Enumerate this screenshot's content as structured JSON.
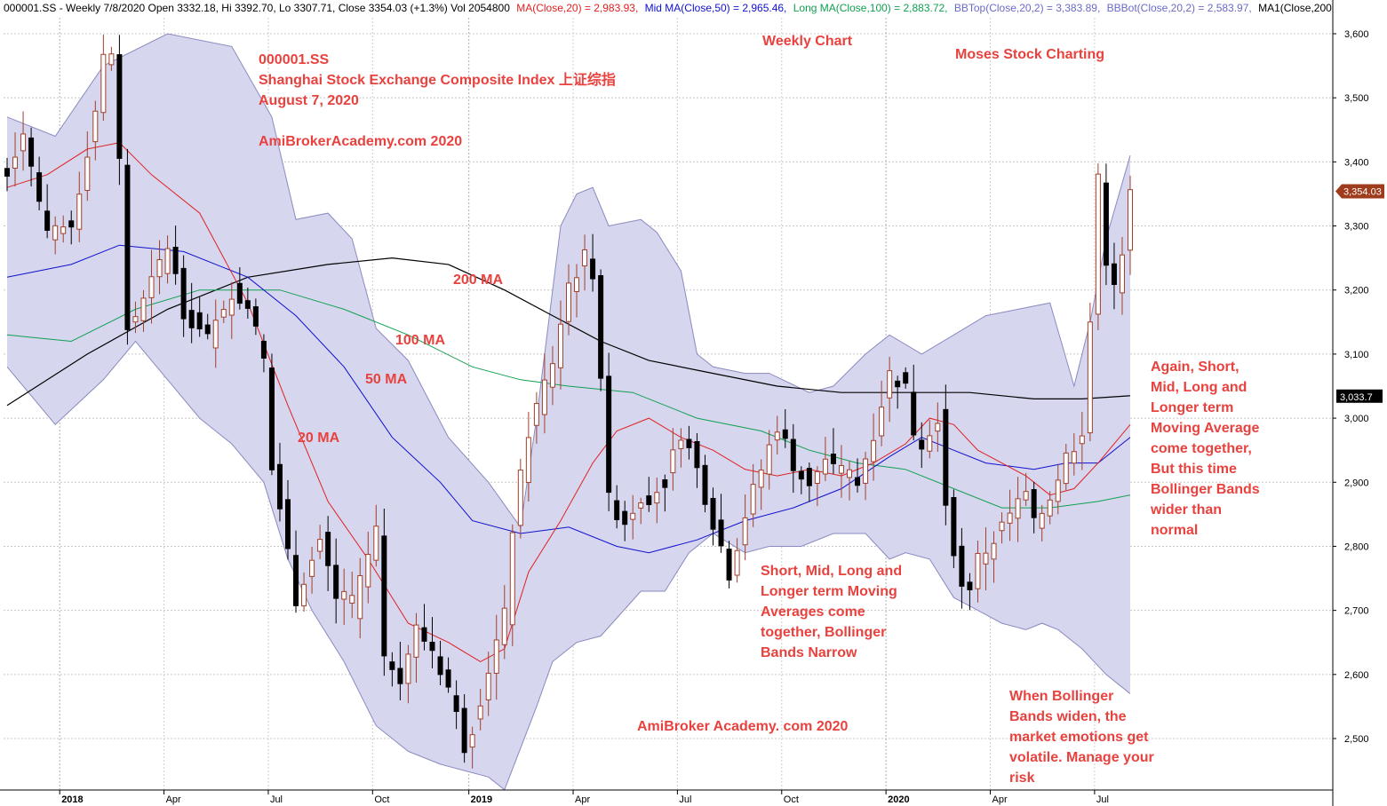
{
  "header": {
    "symbol_line": "000001.SS - Weekly 7/8/2020 Open 3332.18, Hi 3392.70, Lo 3307.71, Close 3354.03 (+1.3%) Vol 2054800",
    "ma20": "MA(Close,20) = 2,983.93,",
    "mid_ma": "Mid MA(Close,50) = 2,965.46,",
    "long_ma": "Long MA(Close,100) = 2,883.72,",
    "bbtop": "BBTop(Close,20,2) = 3,383.89,",
    "bbbot": "BBBot(Close,20,2) = 2,583.97,",
    "ma1": "MA1(Close,200"
  },
  "colors": {
    "up_body": "#ffffff",
    "up_outline": "#a0402a",
    "down_body": "#000000",
    "band_fill": "#d6d6ee",
    "band_edge": "#8a8ac0",
    "ma20": "#e02020",
    "ma50": "#1010d0",
    "ma100": "#10a050",
    "ma200": "#000000",
    "annotation": "#e8423f"
  },
  "annotations": {
    "title_lines": [
      "000001.SS",
      "Shanghai Stock Exchange Composite Index 上证综指",
      "August 7, 2020"
    ],
    "site_top": "AmiBrokerAcademy.com  2020",
    "weekly": "Weekly Chart",
    "moses": "Moses Stock Charting",
    "ma200_label": "200   MA",
    "ma100_label": "100  MA",
    "ma50_label": "50 MA",
    "ma20_label": "20 MA",
    "narrow_note": [
      "Short, Mid, Long and",
      "Longer term Moving",
      "Averages come",
      "together, Bollinger",
      "Bands Narrow"
    ],
    "site_bottom": "AmiBroker Academy. com  2020",
    "wide_note": [
      "Again, Short,",
      "Mid, Long and",
      "Longer term",
      "Moving Average",
      "come together,",
      "But this time",
      "Bollinger Bands",
      "wider than",
      "normal"
    ],
    "risk_note": [
      "When Bollinger",
      "Bands widen, the",
      "market emotions get",
      "volatile. Manage your",
      "risk"
    ]
  },
  "chart_data": {
    "type": "candlestick",
    "title": "",
    "y_ticks": [
      "3,600",
      "3,500",
      "3,400",
      "3,300",
      "3,200",
      "3,100",
      "3,000",
      "2,900",
      "2,800",
      "2,700",
      "2,600",
      "2,500"
    ],
    "y_tick_values": [
      3600,
      3500,
      3400,
      3300,
      3200,
      3100,
      3000,
      2900,
      2800,
      2700,
      2600,
      2500
    ],
    "ylim": [
      2420,
      3680
    ],
    "x_labels": [
      {
        "label": "2018",
        "week": 7,
        "bold": true
      },
      {
        "label": "Apr",
        "week": 20,
        "bold": false
      },
      {
        "label": "Jul",
        "week": 33,
        "bold": false
      },
      {
        "label": "Oct",
        "week": 46,
        "bold": false
      },
      {
        "label": "2019",
        "week": 58,
        "bold": true
      },
      {
        "label": "Apr",
        "week": 71,
        "bold": false
      },
      {
        "label": "Jul",
        "week": 84,
        "bold": false
      },
      {
        "label": "Oct",
        "week": 97,
        "bold": false
      },
      {
        "label": "2020",
        "week": 110,
        "bold": true
      },
      {
        "label": "Apr",
        "week": 123,
        "bold": false
      },
      {
        "label": "Jul",
        "week": 136,
        "bold": false
      }
    ],
    "last_price_label": "3,354.03",
    "last_price_value": 3354.03,
    "ma200_label_value": "3,033.7",
    "ma200_last_value": 3033.7,
    "week_count": 146,
    "price_points": [
      [
        0,
        3390
      ],
      [
        2,
        3450
      ],
      [
        5,
        3280
      ],
      [
        8,
        3300
      ],
      [
        11,
        3480
      ],
      [
        12,
        3560
      ],
      [
        13,
        3570
      ],
      [
        14,
        3400
      ],
      [
        15,
        3140
      ],
      [
        17,
        3180
      ],
      [
        20,
        3270
      ],
      [
        22,
        3170
      ],
      [
        25,
        3120
      ],
      [
        28,
        3200
      ],
      [
        30,
        3180
      ],
      [
        32,
        3090
      ],
      [
        33,
        2920
      ],
      [
        34,
        2860
      ],
      [
        36,
        2720
      ],
      [
        39,
        2810
      ],
      [
        41,
        2720
      ],
      [
        43,
        2700
      ],
      [
        46,
        2820
      ],
      [
        47,
        2630
      ],
      [
        49,
        2600
      ],
      [
        51,
        2670
      ],
      [
        53,
        2640
      ],
      [
        55,
        2580
      ],
      [
        57,
        2490
      ],
      [
        58,
        2520
      ],
      [
        60,
        2610
      ],
      [
        62,
        2690
      ],
      [
        63,
        2830
      ],
      [
        65,
        2980
      ],
      [
        68,
        3090
      ],
      [
        70,
        3210
      ],
      [
        72,
        3250
      ],
      [
        73,
        3230
      ],
      [
        74,
        3070
      ],
      [
        75,
        2870
      ],
      [
        77,
        2840
      ],
      [
        79,
        2880
      ],
      [
        80,
        2880
      ],
      [
        82,
        2900
      ],
      [
        84,
        2980
      ],
      [
        86,
        2920
      ],
      [
        88,
        2840
      ],
      [
        89,
        2800
      ],
      [
        90,
        2760
      ],
      [
        92,
        2850
      ],
      [
        94,
        2920
      ],
      [
        96,
        2990
      ],
      [
        98,
        2930
      ],
      [
        100,
        2900
      ],
      [
        102,
        2930
      ],
      [
        104,
        2910
      ],
      [
        106,
        2900
      ],
      [
        108,
        2980
      ],
      [
        110,
        3070
      ],
      [
        112,
        3050
      ],
      [
        113,
        2980
      ],
      [
        114,
        2960
      ],
      [
        116,
        3000
      ],
      [
        117,
        2870
      ],
      [
        118,
        2800
      ],
      [
        119,
        2730
      ],
      [
        120,
        2740
      ],
      [
        121,
        2780
      ],
      [
        123,
        2810
      ],
      [
        125,
        2850
      ],
      [
        127,
        2880
      ],
      [
        128,
        2830
      ],
      [
        130,
        2880
      ],
      [
        132,
        2940
      ],
      [
        134,
        2980
      ],
      [
        135,
        3150
      ],
      [
        136,
        3380
      ],
      [
        137,
        3250
      ],
      [
        138,
        3200
      ],
      [
        139,
        3250
      ],
      [
        140,
        3350
      ]
    ],
    "bands_top_points": [
      [
        0,
        3470
      ],
      [
        6,
        3440
      ],
      [
        12,
        3550
      ],
      [
        20,
        3600
      ],
      [
        28,
        3580
      ],
      [
        33,
        3470
      ],
      [
        36,
        3310
      ],
      [
        40,
        3320
      ],
      [
        43,
        3280
      ],
      [
        46,
        3140
      ],
      [
        50,
        3090
      ],
      [
        55,
        2970
      ],
      [
        60,
        2900
      ],
      [
        64,
        2830
      ],
      [
        66,
        3000
      ],
      [
        69,
        3300
      ],
      [
        71,
        3350
      ],
      [
        73,
        3360
      ],
      [
        75,
        3300
      ],
      [
        79,
        3310
      ],
      [
        81,
        3290
      ],
      [
        84,
        3230
      ],
      [
        86,
        3100
      ],
      [
        88,
        3080
      ],
      [
        92,
        3070
      ],
      [
        95,
        3070
      ],
      [
        100,
        3040
      ],
      [
        103,
        3050
      ],
      [
        107,
        3100
      ],
      [
        110,
        3130
      ],
      [
        114,
        3100
      ],
      [
        118,
        3130
      ],
      [
        122,
        3160
      ],
      [
        126,
        3170
      ],
      [
        130,
        3180
      ],
      [
        133,
        3050
      ],
      [
        135,
        3150
      ],
      [
        137,
        3280
      ],
      [
        140,
        3410
      ]
    ],
    "bands_bottom_points": [
      [
        0,
        3080
      ],
      [
        6,
        2990
      ],
      [
        12,
        3060
      ],
      [
        16,
        3120
      ],
      [
        20,
        3060
      ],
      [
        24,
        3000
      ],
      [
        28,
        2960
      ],
      [
        32,
        2900
      ],
      [
        35,
        2780
      ],
      [
        38,
        2700
      ],
      [
        42,
        2620
      ],
      [
        46,
        2520
      ],
      [
        50,
        2480
      ],
      [
        54,
        2460
      ],
      [
        57,
        2450
      ],
      [
        60,
        2440
      ],
      [
        62,
        2420
      ],
      [
        66,
        2550
      ],
      [
        68,
        2620
      ],
      [
        71,
        2650
      ],
      [
        74,
        2660
      ],
      [
        79,
        2730
      ],
      [
        82,
        2730
      ],
      [
        85,
        2790
      ],
      [
        88,
        2820
      ],
      [
        92,
        2790
      ],
      [
        95,
        2800
      ],
      [
        99,
        2800
      ],
      [
        103,
        2820
      ],
      [
        107,
        2820
      ],
      [
        110,
        2780
      ],
      [
        112,
        2790
      ],
      [
        115,
        2780
      ],
      [
        118,
        2720
      ],
      [
        121,
        2700
      ],
      [
        124,
        2680
      ],
      [
        127,
        2670
      ],
      [
        129,
        2680
      ],
      [
        131,
        2670
      ],
      [
        134,
        2640
      ],
      [
        137,
        2600
      ],
      [
        140,
        2570
      ]
    ],
    "ma20_points": [
      [
        0,
        3360
      ],
      [
        5,
        3380
      ],
      [
        10,
        3420
      ],
      [
        14,
        3430
      ],
      [
        18,
        3380
      ],
      [
        24,
        3320
      ],
      [
        30,
        3180
      ],
      [
        35,
        3020
      ],
      [
        40,
        2870
      ],
      [
        45,
        2780
      ],
      [
        50,
        2680
      ],
      [
        55,
        2650
      ],
      [
        59,
        2620
      ],
      [
        62,
        2640
      ],
      [
        65,
        2760
      ],
      [
        69,
        2840
      ],
      [
        73,
        2930
      ],
      [
        76,
        2980
      ],
      [
        80,
        3000
      ],
      [
        84,
        2970
      ],
      [
        88,
        2950
      ],
      [
        92,
        2920
      ],
      [
        96,
        2910
      ],
      [
        100,
        2920
      ],
      [
        104,
        2910
      ],
      [
        108,
        2930
      ],
      [
        112,
        2960
      ],
      [
        115,
        3000
      ],
      [
        118,
        2990
      ],
      [
        121,
        2950
      ],
      [
        124,
        2930
      ],
      [
        127,
        2910
      ],
      [
        130,
        2880
      ],
      [
        133,
        2890
      ],
      [
        136,
        2930
      ],
      [
        140,
        2990
      ]
    ],
    "ma50_points": [
      [
        0,
        3220
      ],
      [
        8,
        3240
      ],
      [
        14,
        3270
      ],
      [
        22,
        3260
      ],
      [
        30,
        3220
      ],
      [
        36,
        3160
      ],
      [
        42,
        3080
      ],
      [
        48,
        2970
      ],
      [
        54,
        2900
      ],
      [
        58,
        2840
      ],
      [
        64,
        2820
      ],
      [
        70,
        2830
      ],
      [
        76,
        2800
      ],
      [
        80,
        2790
      ],
      [
        86,
        2810
      ],
      [
        92,
        2840
      ],
      [
        98,
        2860
      ],
      [
        104,
        2890
      ],
      [
        110,
        2940
      ],
      [
        114,
        2970
      ],
      [
        118,
        2950
      ],
      [
        122,
        2930
      ],
      [
        128,
        2920
      ],
      [
        132,
        2930
      ],
      [
        136,
        2930
      ],
      [
        140,
        2970
      ]
    ],
    "ma100_points": [
      [
        0,
        3130
      ],
      [
        8,
        3120
      ],
      [
        16,
        3170
      ],
      [
        24,
        3200
      ],
      [
        34,
        3200
      ],
      [
        42,
        3170
      ],
      [
        50,
        3130
      ],
      [
        58,
        3080
      ],
      [
        64,
        3060
      ],
      [
        70,
        3050
      ],
      [
        78,
        3040
      ],
      [
        86,
        3000
      ],
      [
        94,
        2980
      ],
      [
        100,
        2950
      ],
      [
        106,
        2930
      ],
      [
        112,
        2920
      ],
      [
        118,
        2890
      ],
      [
        124,
        2860
      ],
      [
        130,
        2860
      ],
      [
        136,
        2870
      ],
      [
        140,
        2880
      ]
    ],
    "ma200_points": [
      [
        0,
        3020
      ],
      [
        10,
        3100
      ],
      [
        20,
        3170
      ],
      [
        30,
        3220
      ],
      [
        40,
        3240
      ],
      [
        48,
        3250
      ],
      [
        55,
        3240
      ],
      [
        62,
        3200
      ],
      [
        68,
        3160
      ],
      [
        74,
        3120
      ],
      [
        80,
        3090
      ],
      [
        88,
        3070
      ],
      [
        96,
        3050
      ],
      [
        104,
        3040
      ],
      [
        112,
        3040
      ],
      [
        120,
        3040
      ],
      [
        128,
        3030
      ],
      [
        134,
        3030
      ],
      [
        140,
        3035
      ]
    ]
  }
}
